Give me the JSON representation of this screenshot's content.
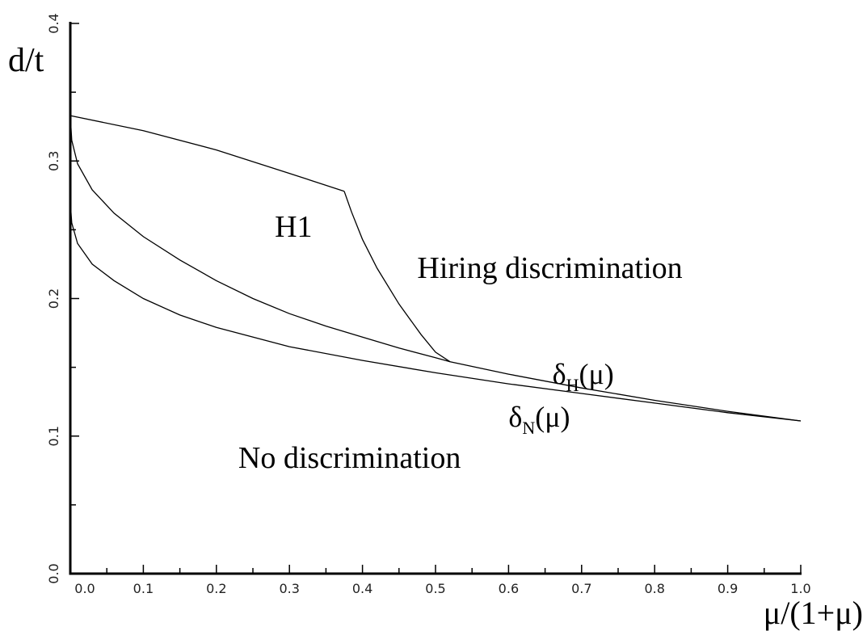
{
  "chart_data": {
    "type": "line",
    "xlabel": "μ/(1+μ)",
    "ylabel": "d/t",
    "xlim": [
      0.0,
      1.0
    ],
    "ylim": [
      0.0,
      0.4
    ],
    "xticks": [
      "0.0",
      "0.1",
      "0.2",
      "0.3",
      "0.4",
      "0.5",
      "0.6",
      "0.7",
      "0.8",
      "0.9",
      "1.0"
    ],
    "yticks": [
      "0.0",
      "0.1",
      "0.2",
      "0.3",
      "0.4"
    ],
    "grid": false,
    "series": [
      {
        "key": "deltaH",
        "name": "δH(μ)",
        "x": [
          0.0,
          0.002,
          0.01,
          0.03,
          0.06,
          0.1,
          0.15,
          0.2,
          0.25,
          0.3,
          0.35,
          0.4,
          0.45,
          0.5,
          0.52,
          0.6,
          0.7,
          0.8,
          0.9,
          1.0
        ],
        "y": [
          0.333,
          0.315,
          0.298,
          0.279,
          0.262,
          0.245,
          0.228,
          0.213,
          0.2,
          0.189,
          0.18,
          0.172,
          0.164,
          0.157,
          0.154,
          0.145,
          0.135,
          0.126,
          0.118,
          0.111
        ]
      },
      {
        "key": "deltaN",
        "name": "δN(μ)",
        "x": [
          0.0,
          0.002,
          0.01,
          0.03,
          0.06,
          0.1,
          0.15,
          0.2,
          0.3,
          0.4,
          0.5,
          0.6,
          0.7,
          0.8,
          0.9,
          1.0
        ],
        "y": [
          0.27,
          0.255,
          0.24,
          0.225,
          0.213,
          0.2,
          0.188,
          0.179,
          0.165,
          0.155,
          0.146,
          0.138,
          0.131,
          0.124,
          0.117,
          0.111
        ]
      },
      {
        "key": "h1_upper",
        "x": [
          0.0,
          0.1,
          0.2,
          0.3,
          0.375
        ],
        "y": [
          0.333,
          0.322,
          0.308,
          0.291,
          0.278
        ]
      },
      {
        "key": "h1_right",
        "x": [
          0.375,
          0.385,
          0.4,
          0.42,
          0.45,
          0.48,
          0.5,
          0.52
        ],
        "y": [
          0.278,
          0.263,
          0.243,
          0.222,
          0.196,
          0.174,
          0.161,
          0.154
        ]
      }
    ],
    "annotations": [
      {
        "text": "H1",
        "x": 0.28,
        "y": 0.245
      },
      {
        "text": "Hiring discrimination",
        "x": 0.475,
        "y": 0.215
      },
      {
        "text": "No discrimination",
        "x": 0.23,
        "y": 0.077
      }
    ],
    "series_labels": [
      {
        "series": "deltaH",
        "base": "δ",
        "sub": "H",
        "tail": "(μ)",
        "x": 0.66,
        "y": 0.138
      },
      {
        "series": "deltaN",
        "base": "δ",
        "sub": "N",
        "tail": "(μ)",
        "x": 0.6,
        "y": 0.107
      }
    ]
  }
}
